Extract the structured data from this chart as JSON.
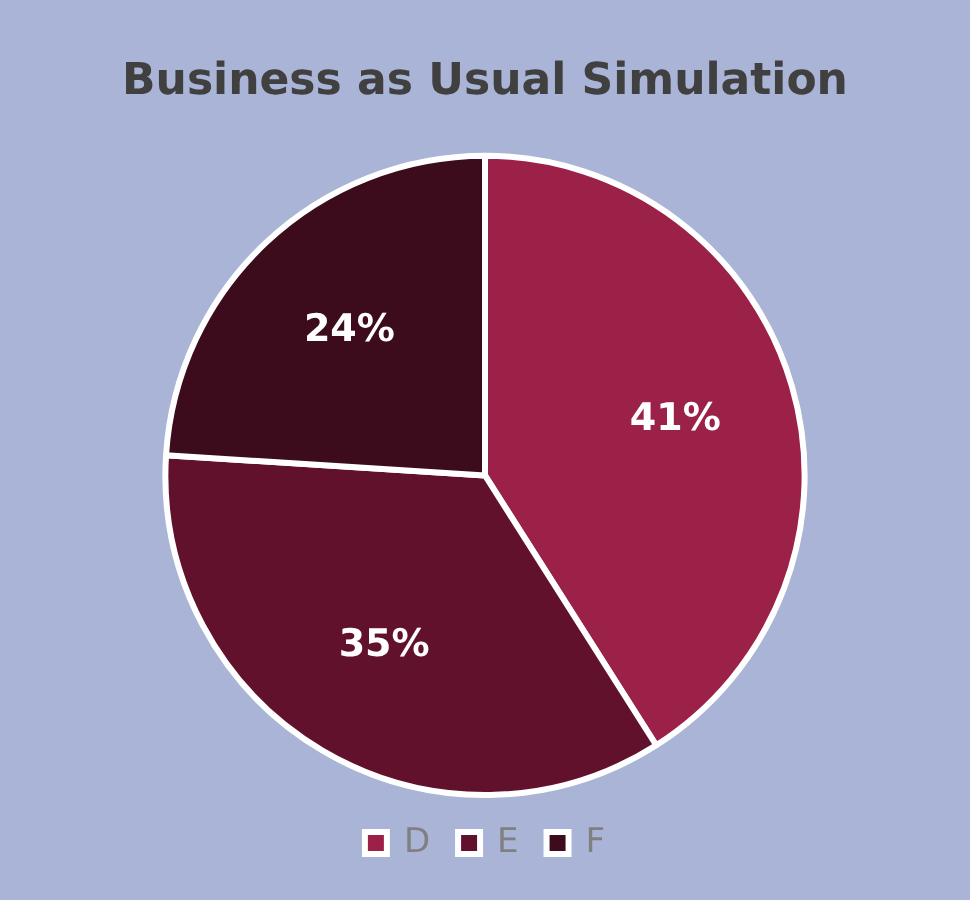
{
  "chart_data": {
    "type": "pie",
    "title": "Business as Usual Simulation",
    "categories": [
      "D",
      "E",
      "F"
    ],
    "values": [
      41,
      35,
      24
    ],
    "colors": [
      "#9b2149",
      "#62112d",
      "#3d0c1c"
    ],
    "value_labels": [
      "41%",
      "35%",
      "24%"
    ],
    "legend": "bottom"
  }
}
